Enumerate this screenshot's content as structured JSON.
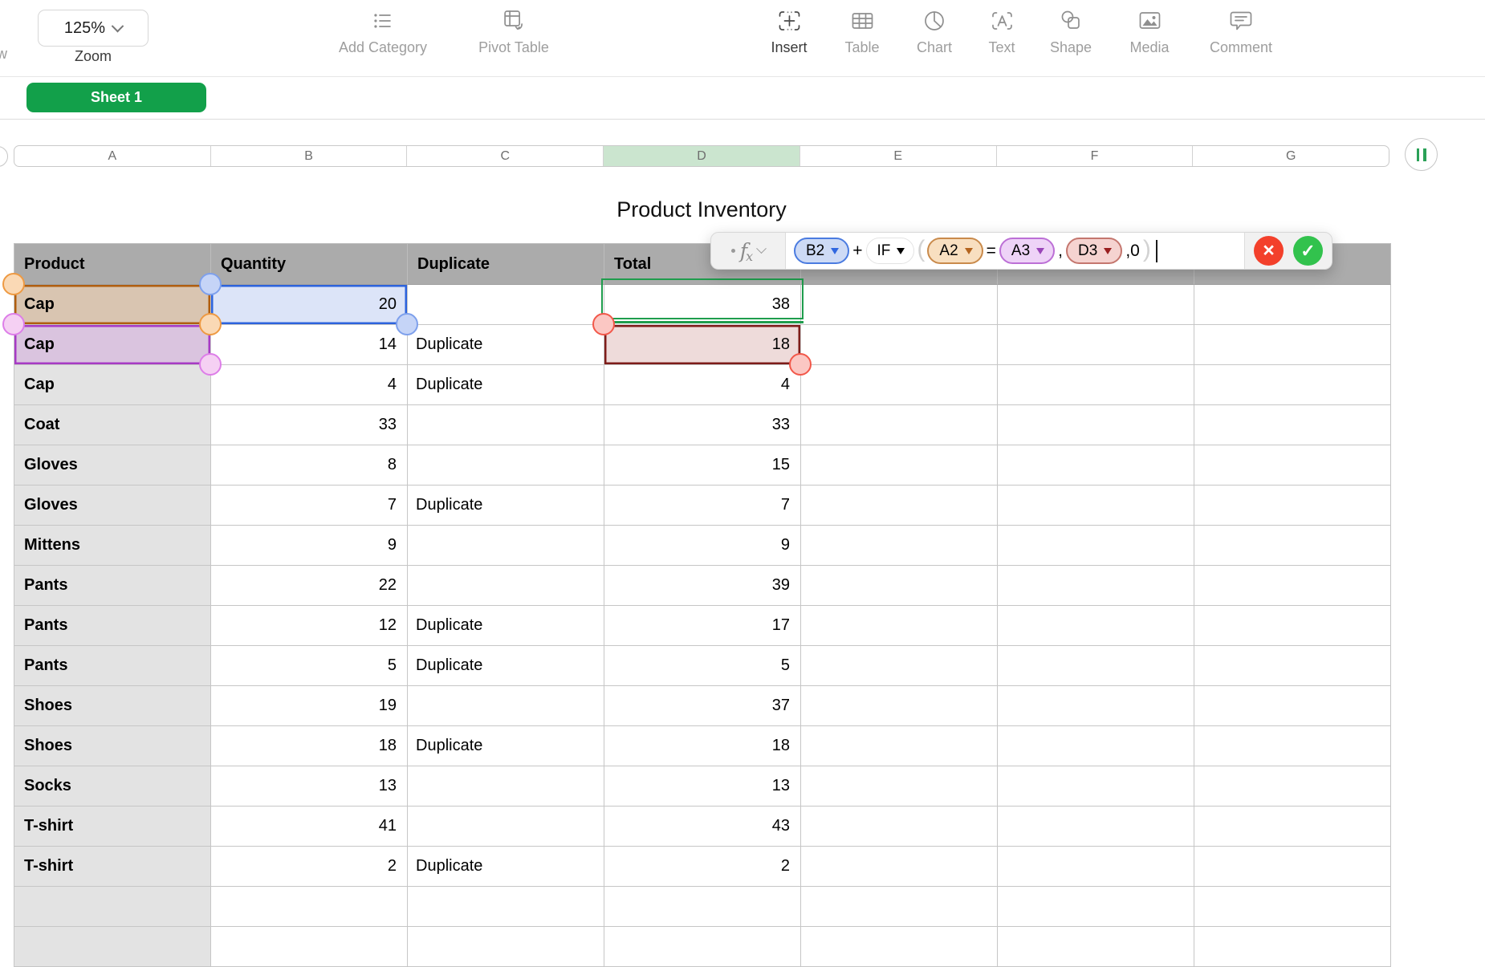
{
  "toolbar": {
    "view_fragment": "w",
    "zoom_value": "125%",
    "zoom_label": "Zoom",
    "items": [
      {
        "label": "Add Category",
        "icon": "add-category",
        "emphasized": false
      },
      {
        "label": "Pivot Table",
        "icon": "pivot-table",
        "emphasized": false
      },
      {
        "label": "Insert",
        "icon": "insert",
        "emphasized": true
      },
      {
        "label": "Table",
        "icon": "table",
        "emphasized": false
      },
      {
        "label": "Chart",
        "icon": "chart",
        "emphasized": false
      },
      {
        "label": "Text",
        "icon": "text",
        "emphasized": false
      },
      {
        "label": "Shape",
        "icon": "shape",
        "emphasized": false
      },
      {
        "label": "Media",
        "icon": "media",
        "emphasized": false
      },
      {
        "label": "Comment",
        "icon": "comment",
        "emphasized": false
      }
    ]
  },
  "sheet_tab": "Sheet 1",
  "column_headers": [
    "A",
    "B",
    "C",
    "D",
    "E",
    "F",
    "G"
  ],
  "selected_column": "D",
  "title": "Product Inventory",
  "formula_bar": {
    "fx_label": "fx",
    "tokens": [
      {
        "kind": "ref",
        "color": "blue",
        "text": "B2"
      },
      {
        "kind": "op",
        "text": "+"
      },
      {
        "kind": "func",
        "text": "IF"
      },
      {
        "kind": "paren",
        "text": "("
      },
      {
        "kind": "ref",
        "color": "orange",
        "text": "A2"
      },
      {
        "kind": "op",
        "text": "="
      },
      {
        "kind": "ref",
        "color": "purple",
        "text": "A3"
      },
      {
        "kind": "op",
        "text": ","
      },
      {
        "kind": "ref",
        "color": "red",
        "text": "D3"
      },
      {
        "kind": "op",
        "text": ",0"
      },
      {
        "kind": "paren",
        "text": ")"
      }
    ],
    "cancel_label": "×",
    "accept_label": "✓"
  },
  "table": {
    "headers": [
      "Product",
      "Quantity",
      "Duplicate",
      "Total"
    ],
    "rows": [
      {
        "product": "Cap",
        "quantity": "20",
        "duplicate": "",
        "total": "38"
      },
      {
        "product": "Cap",
        "quantity": "14",
        "duplicate": "Duplicate",
        "total": "18"
      },
      {
        "product": "Cap",
        "quantity": "4",
        "duplicate": "Duplicate",
        "total": "4"
      },
      {
        "product": "Coat",
        "quantity": "33",
        "duplicate": "",
        "total": "33"
      },
      {
        "product": "Gloves",
        "quantity": "8",
        "duplicate": "",
        "total": "15"
      },
      {
        "product": "Gloves",
        "quantity": "7",
        "duplicate": "Duplicate",
        "total": "7"
      },
      {
        "product": "Mittens",
        "quantity": "9",
        "duplicate": "",
        "total": "9"
      },
      {
        "product": "Pants",
        "quantity": "22",
        "duplicate": "",
        "total": "39"
      },
      {
        "product": "Pants",
        "quantity": "12",
        "duplicate": "Duplicate",
        "total": "17"
      },
      {
        "product": "Pants",
        "quantity": "5",
        "duplicate": "Duplicate",
        "total": "5"
      },
      {
        "product": "Shoes",
        "quantity": "19",
        "duplicate": "",
        "total": "37"
      },
      {
        "product": "Shoes",
        "quantity": "18",
        "duplicate": "Duplicate",
        "total": "18"
      },
      {
        "product": "Socks",
        "quantity": "13",
        "duplicate": "",
        "total": "13"
      },
      {
        "product": "T-shirt",
        "quantity": "41",
        "duplicate": "",
        "total": "43"
      },
      {
        "product": "T-shirt",
        "quantity": "2",
        "duplicate": "Duplicate",
        "total": "2"
      },
      {
        "product": "",
        "quantity": "",
        "duplicate": "",
        "total": ""
      },
      {
        "product": "",
        "quantity": "",
        "duplicate": "",
        "total": ""
      }
    ]
  },
  "selections": {
    "editing_cell": {
      "ref": "D2",
      "value": "38"
    },
    "refs": [
      {
        "ref": "A2",
        "row": 0,
        "col": 0,
        "color": "orange"
      },
      {
        "ref": "B2",
        "row": 0,
        "col": 1,
        "color": "blue"
      },
      {
        "ref": "A3",
        "row": 1,
        "col": 0,
        "color": "purple"
      },
      {
        "ref": "D3",
        "row": 1,
        "col": 3,
        "color": "red"
      }
    ]
  },
  "colors": {
    "green": "#12A04A",
    "cell-green-border": "#1F9D4D",
    "btn-green": "#32C24D",
    "btn-red": "#F3402B",
    "header-gray": "#ABABAB",
    "col-gray": "#E3E3E3",
    "d-col-header": "#CBE5CF",
    "orange-border": "#B05E10",
    "orange-fill": "#D9C5B1",
    "orange-handle-border": "#EE9A43",
    "orange-handle-fill": "#FAD9B5",
    "blue-border": "#2D63DC",
    "blue-fill": "#DCE4F8",
    "blue-handle-border": "#7EA0EC",
    "blue-handle-fill": "#C5D4F7",
    "purple-border": "#A73BC4",
    "purple-fill": "#DAC4DF",
    "purple-handle-border": "#DD7EE8",
    "purple-handle-fill": "#F5D0F3",
    "red-border": "#7E1D1A",
    "red-fill": "#EEDBDA",
    "red-handle-border": "#F2584A",
    "red-handle-fill": "#FBC7C3",
    "pill-blue-fill": "#CDDAF5",
    "pill-blue-border": "#4A7BE0",
    "pill-orange-fill": "#F8DFC0",
    "pill-orange-border": "#C98A4B",
    "pill-purple-fill": "#EED3F7",
    "pill-purple-border": "#BC6FD6",
    "pill-red-fill": "#F5D3D0",
    "pill-red-border": "#C4766E"
  }
}
